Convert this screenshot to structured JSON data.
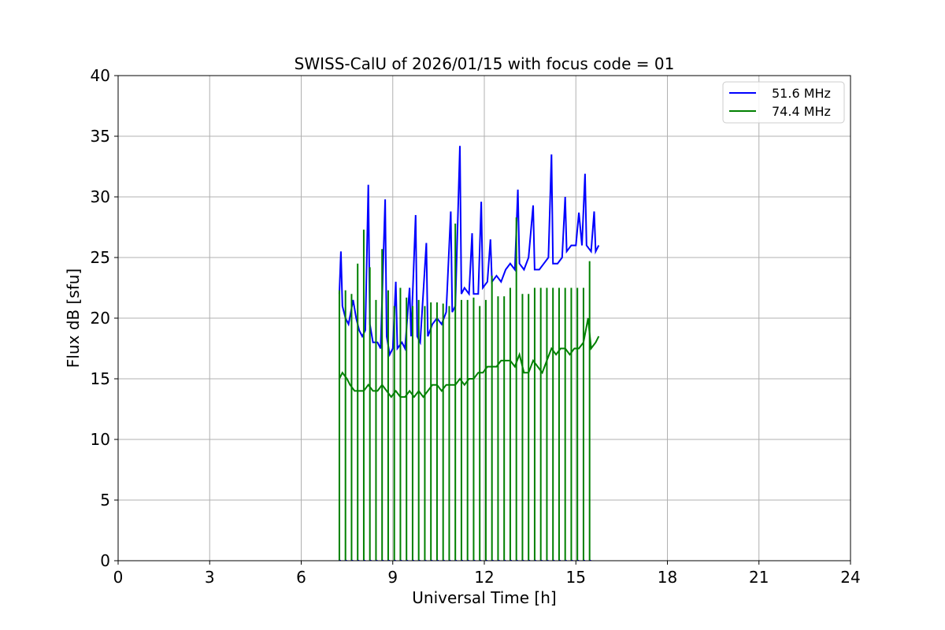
{
  "chart_data": {
    "type": "line",
    "title": "SWISS-CalU of 2026/01/15 with focus code = 01",
    "xlabel": "Universal Time [h]",
    "ylabel": "Flux dB [sfu]",
    "xlim": [
      0,
      24
    ],
    "ylim": [
      0,
      40
    ],
    "xticks": [
      0,
      3,
      6,
      9,
      12,
      15,
      18,
      21,
      24
    ],
    "yticks": [
      0,
      5,
      10,
      15,
      20,
      25,
      30,
      35,
      40
    ],
    "grid": true,
    "legend_position": "top-right",
    "series": [
      {
        "name": "51.6 MHz",
        "color": "#0000ff",
        "points": [
          [
            7.25,
            22.0
          ],
          [
            7.3,
            25.5
          ],
          [
            7.35,
            21.0
          ],
          [
            7.45,
            20.0
          ],
          [
            7.55,
            19.5
          ],
          [
            7.7,
            21.5
          ],
          [
            7.8,
            20.0
          ],
          [
            7.9,
            19.0
          ],
          [
            8.0,
            18.5
          ],
          [
            8.1,
            19.0
          ],
          [
            8.2,
            31.0
          ],
          [
            8.25,
            19.5
          ],
          [
            8.35,
            18.0
          ],
          [
            8.5,
            18.0
          ],
          [
            8.6,
            17.5
          ],
          [
            8.75,
            29.8
          ],
          [
            8.8,
            18.5
          ],
          [
            8.9,
            17.0
          ],
          [
            9.0,
            17.5
          ],
          [
            9.1,
            23.0
          ],
          [
            9.15,
            17.5
          ],
          [
            9.3,
            18.0
          ],
          [
            9.4,
            17.5
          ],
          [
            9.55,
            22.5
          ],
          [
            9.6,
            18.5
          ],
          [
            9.75,
            28.5
          ],
          [
            9.8,
            18.5
          ],
          [
            9.9,
            18.0
          ],
          [
            10.1,
            26.2
          ],
          [
            10.15,
            18.5
          ],
          [
            10.3,
            19.5
          ],
          [
            10.45,
            20.0
          ],
          [
            10.6,
            19.5
          ],
          [
            10.75,
            20.5
          ],
          [
            10.9,
            28.8
          ],
          [
            10.95,
            20.5
          ],
          [
            11.05,
            21.0
          ],
          [
            11.2,
            34.2
          ],
          [
            11.25,
            22.0
          ],
          [
            11.35,
            22.5
          ],
          [
            11.5,
            22.0
          ],
          [
            11.6,
            27.0
          ],
          [
            11.65,
            22.0
          ],
          [
            11.8,
            22.0
          ],
          [
            11.9,
            29.6
          ],
          [
            11.95,
            22.5
          ],
          [
            12.1,
            23.0
          ],
          [
            12.2,
            26.5
          ],
          [
            12.25,
            23.0
          ],
          [
            12.4,
            23.5
          ],
          [
            12.55,
            23.0
          ],
          [
            12.7,
            24.0
          ],
          [
            12.85,
            24.5
          ],
          [
            13.0,
            24.0
          ],
          [
            13.1,
            30.6
          ],
          [
            13.15,
            24.5
          ],
          [
            13.3,
            24.0
          ],
          [
            13.45,
            25.0
          ],
          [
            13.6,
            29.3
          ],
          [
            13.65,
            24.0
          ],
          [
            13.8,
            24.0
          ],
          [
            13.95,
            24.5
          ],
          [
            14.1,
            25.0
          ],
          [
            14.2,
            33.5
          ],
          [
            14.25,
            24.5
          ],
          [
            14.4,
            24.5
          ],
          [
            14.55,
            25.0
          ],
          [
            14.65,
            30.0
          ],
          [
            14.7,
            25.5
          ],
          [
            14.85,
            26.0
          ],
          [
            15.0,
            26.0
          ],
          [
            15.1,
            28.7
          ],
          [
            15.2,
            26.0
          ],
          [
            15.3,
            31.9
          ],
          [
            15.35,
            26.0
          ],
          [
            15.5,
            25.5
          ],
          [
            15.6,
            28.8
          ],
          [
            15.65,
            25.5
          ],
          [
            15.75,
            26.0
          ]
        ]
      },
      {
        "name": "74.4 MHz",
        "color": "#008000",
        "points": [
          [
            7.25,
            15.0
          ],
          [
            7.35,
            15.5
          ],
          [
            7.5,
            15.0
          ],
          [
            7.6,
            14.5
          ],
          [
            7.75,
            14.0
          ],
          [
            7.9,
            14.0
          ],
          [
            8.05,
            14.0
          ],
          [
            8.2,
            14.5
          ],
          [
            8.35,
            14.0
          ],
          [
            8.5,
            14.0
          ],
          [
            8.65,
            14.5
          ],
          [
            8.8,
            14.0
          ],
          [
            8.95,
            13.5
          ],
          [
            9.1,
            14.0
          ],
          [
            9.25,
            13.5
          ],
          [
            9.4,
            13.5
          ],
          [
            9.55,
            14.0
          ],
          [
            9.7,
            13.5
          ],
          [
            9.85,
            14.0
          ],
          [
            10.0,
            13.5
          ],
          [
            10.15,
            14.0
          ],
          [
            10.3,
            14.5
          ],
          [
            10.45,
            14.5
          ],
          [
            10.6,
            14.0
          ],
          [
            10.75,
            14.5
          ],
          [
            10.9,
            14.5
          ],
          [
            11.05,
            14.5
          ],
          [
            11.2,
            15.0
          ],
          [
            11.35,
            14.5
          ],
          [
            11.5,
            15.0
          ],
          [
            11.65,
            15.0
          ],
          [
            11.8,
            15.5
          ],
          [
            11.95,
            15.5
          ],
          [
            12.1,
            16.0
          ],
          [
            12.25,
            16.0
          ],
          [
            12.4,
            16.0
          ],
          [
            12.55,
            16.5
          ],
          [
            12.7,
            16.5
          ],
          [
            12.85,
            16.5
          ],
          [
            13.0,
            16.0
          ],
          [
            13.15,
            17.0
          ],
          [
            13.3,
            15.5
          ],
          [
            13.45,
            15.5
          ],
          [
            13.6,
            16.5
          ],
          [
            13.75,
            16.0
          ],
          [
            13.9,
            15.5
          ],
          [
            14.05,
            16.5
          ],
          [
            14.2,
            17.5
          ],
          [
            14.35,
            17.0
          ],
          [
            14.5,
            17.5
          ],
          [
            14.65,
            17.5
          ],
          [
            14.8,
            17.0
          ],
          [
            14.95,
            17.5
          ],
          [
            15.1,
            17.5
          ],
          [
            15.25,
            18.0
          ],
          [
            15.4,
            20.0
          ],
          [
            15.5,
            17.5
          ],
          [
            15.65,
            18.0
          ],
          [
            15.75,
            18.5
          ]
        ],
        "drops": [
          7.25,
          7.45,
          7.65,
          7.85,
          8.05,
          8.25,
          8.45,
          8.65,
          8.85,
          9.05,
          9.25,
          9.45,
          9.65,
          9.85,
          10.05,
          10.25,
          10.45,
          10.65,
          10.85,
          11.05,
          11.25,
          11.45,
          11.65,
          11.85,
          12.05,
          12.25,
          12.45,
          12.65,
          12.85,
          13.05,
          13.25,
          13.45,
          13.65,
          13.85,
          14.05,
          14.25,
          14.45,
          14.65,
          14.85,
          15.05,
          15.25,
          15.45
        ],
        "drop_peaks": [
          22.3,
          22.3,
          22.0,
          24.5,
          27.3,
          24.2,
          21.5,
          25.7,
          22.3,
          21.0,
          22.5,
          21.7,
          21.0,
          21.5,
          21.0,
          21.3,
          21.3,
          21.2,
          21.0,
          27.8,
          21.5,
          21.5,
          21.7,
          21.0,
          21.5,
          23.5,
          21.8,
          21.8,
          22.5,
          28.3,
          22.0,
          22.0,
          22.5,
          22.5,
          22.5,
          22.5,
          22.5,
          22.5,
          22.5,
          22.5,
          22.5,
          24.7
        ]
      }
    ]
  }
}
